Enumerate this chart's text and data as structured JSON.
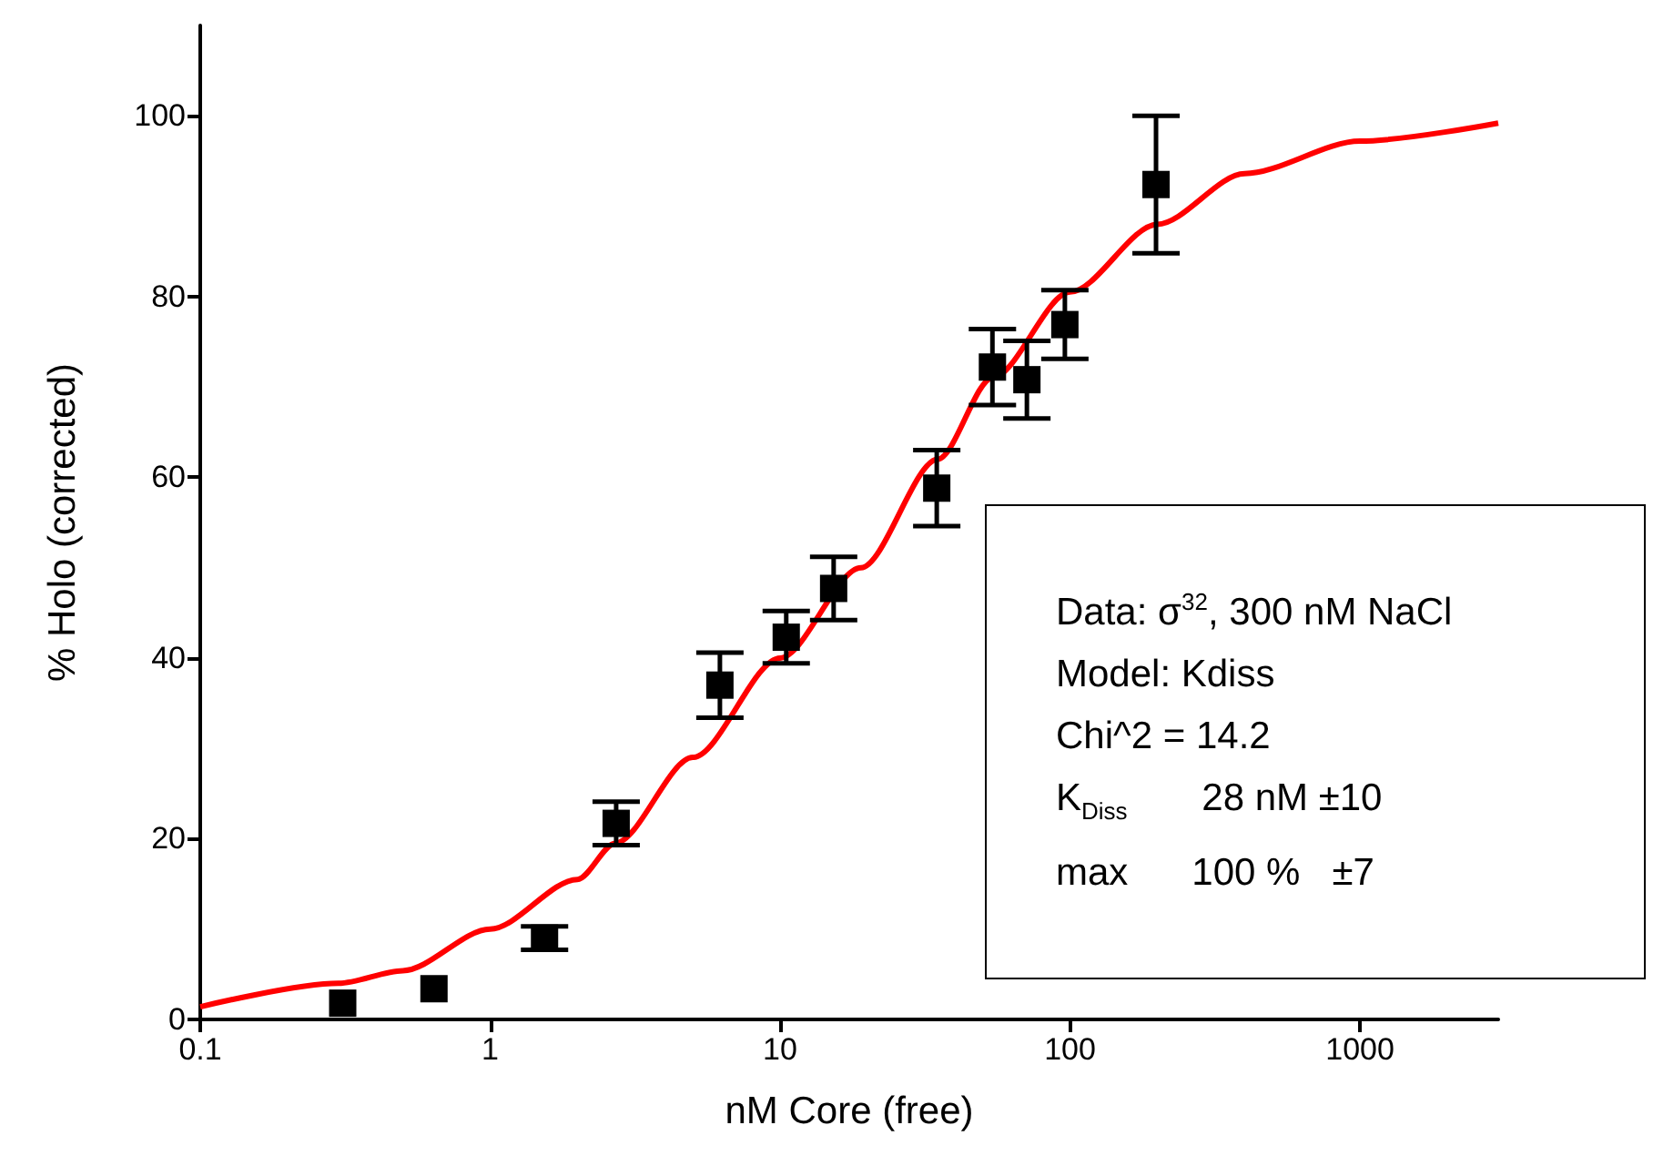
{
  "chart_data": {
    "type": "scatter",
    "xlabel": "nM Core (free)",
    "ylabel": "% Holo (corrected)",
    "log": "x",
    "xlim": [
      0.1,
      3000
    ],
    "xticks": [
      0.1,
      1,
      10,
      100,
      1000
    ],
    "ylim": [
      0,
      110
    ],
    "yticks": [
      0,
      20,
      40,
      60,
      80,
      100
    ],
    "grid": false,
    "annotations": [
      "Data: σ$^{32}$, 300 nM NaCl",
      "Model: Kdiss",
      "Chi^2 = 14.2",
      "K$_{Diss}$       28 nM ±10",
      "max      100 %   ±7"
    ],
    "series": [
      {
        "color": "#000000",
        "marker": "square",
        "x": [
          0.31,
          0.64,
          1.54,
          2.72,
          6.2,
          10.5,
          15.3,
          34.7,
          54,
          71,
          96,
          198
        ],
        "values": [
          1.8,
          3.4,
          9.0,
          21.7,
          37.0,
          42.3,
          47.7,
          58.8,
          72.2,
          70.8,
          76.9,
          92.4
        ],
        "errors": [
          null,
          null,
          1.3,
          2.4,
          3.6,
          2.9,
          3.5,
          4.2,
          4.2,
          4.3,
          3.8,
          7.6
        ]
      },
      {
        "type": "line",
        "color": "#ff0000",
        "marker": "none",
        "x": [
          0.1,
          0.3,
          0.5,
          1,
          2,
          2.7,
          5,
          10,
          19,
          35,
          54,
          100,
          200,
          400,
          1000,
          3000
        ],
        "values": [
          1.4,
          4.0,
          5.4,
          10,
          15.5,
          19.5,
          29,
          40,
          50,
          62,
          71,
          80.5,
          88,
          93.6,
          97.2,
          99.2
        ]
      }
    ]
  }
}
